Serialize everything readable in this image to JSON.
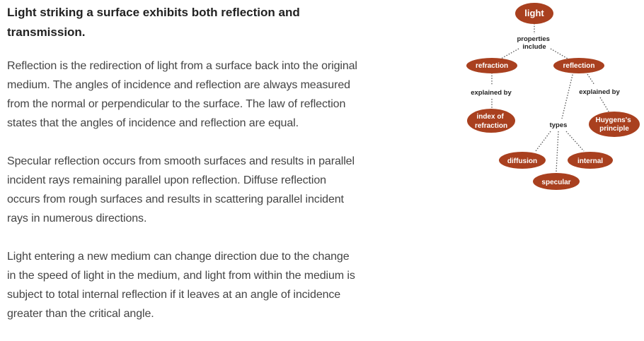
{
  "article": {
    "heading": "Light striking a surface exhibits both reflection and transmission.",
    "paragraphs": [
      "Reflection is the redirection of light from a surface back into the original medium. The angles of incidence and reflection are always measured from the normal or perpendicular to the surface. The law of reflection states that the angles of incidence and reflection are equal.",
      "Specular reflection occurs from smooth surfaces and results in parallel incident rays remaining parallel upon reflection. Diffuse reflection occurs from rough surfaces and results in scattering parallel incident rays in numerous directions.",
      "Light entering a new medium can change direction due to the change in the speed of light in the medium, and light from within the medium is subject to total internal reflection if it leaves at an angle of incidence greater than the critical angle."
    ]
  },
  "concept_map": {
    "node_color": "#a9401f",
    "nodes": {
      "light": "light",
      "refraction": "refraction",
      "reflection": "reflection",
      "index_of_refraction": [
        "index of",
        "refraction"
      ],
      "huygens_principle": [
        "Huygens's",
        "principle"
      ],
      "diffusion": "diffusion",
      "internal": "internal",
      "specular": "specular"
    },
    "links": {
      "properties_include": [
        "properties",
        "include"
      ],
      "explained_by_left": "explained by",
      "explained_by_right": "explained by",
      "types": "types"
    }
  }
}
